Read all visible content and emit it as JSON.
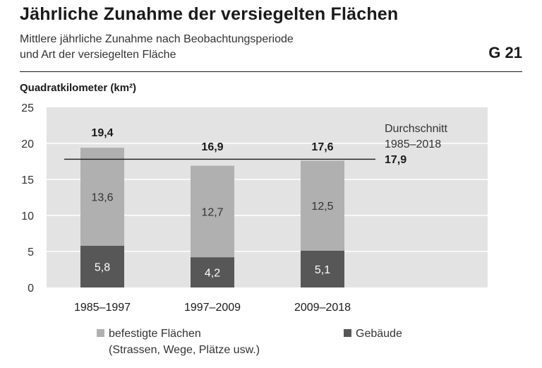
{
  "title": "Jährliche Zunahme der versiegelten Flächen",
  "subtitle_line1": "Mittlere jährliche Zunahme nach Beobachtungsperiode",
  "subtitle_line2": "und Art der versiegelten Fläche",
  "code": "G 21",
  "colors": {
    "befestigte": "#b0b0b0",
    "gebaeude": "#575757",
    "plot_bg": "#e3e3e3",
    "grid": "#ffffff",
    "avg_line": "#1a1a1a"
  },
  "legend": {
    "item1_line1": "befestigte Flächen",
    "item1_line2": "(Strassen, Wege, Plätze usw.)",
    "item2": "Gebäude"
  },
  "chart_data": {
    "type": "bar",
    "stacked": true,
    "ylabel": "Quadratkilometer (km²)",
    "ylim": [
      0,
      25
    ],
    "yticks": [
      0,
      5,
      10,
      15,
      20,
      25
    ],
    "grid": true,
    "legend_position": "bottom",
    "categories": [
      "1985–1997",
      "1997–2009",
      "2009–2018"
    ],
    "series": [
      {
        "name": "Gebäude",
        "values": [
          5.8,
          4.2,
          5.1
        ],
        "labels": [
          "5,8",
          "4,2",
          "5,1"
        ]
      },
      {
        "name": "befestigte Flächen (Strassen, Wege, Plätze usw.)",
        "values": [
          13.6,
          12.7,
          12.5
        ],
        "labels": [
          "13,6",
          "12,7",
          "12,5"
        ]
      }
    ],
    "totals": [
      19.4,
      16.9,
      17.6
    ],
    "total_labels": [
      "19,4",
      "16,9",
      "17,6"
    ],
    "average": {
      "label_line1": "Durchschnitt",
      "label_line2": "1985–2018",
      "value": 17.9,
      "value_label": "17,9"
    }
  }
}
